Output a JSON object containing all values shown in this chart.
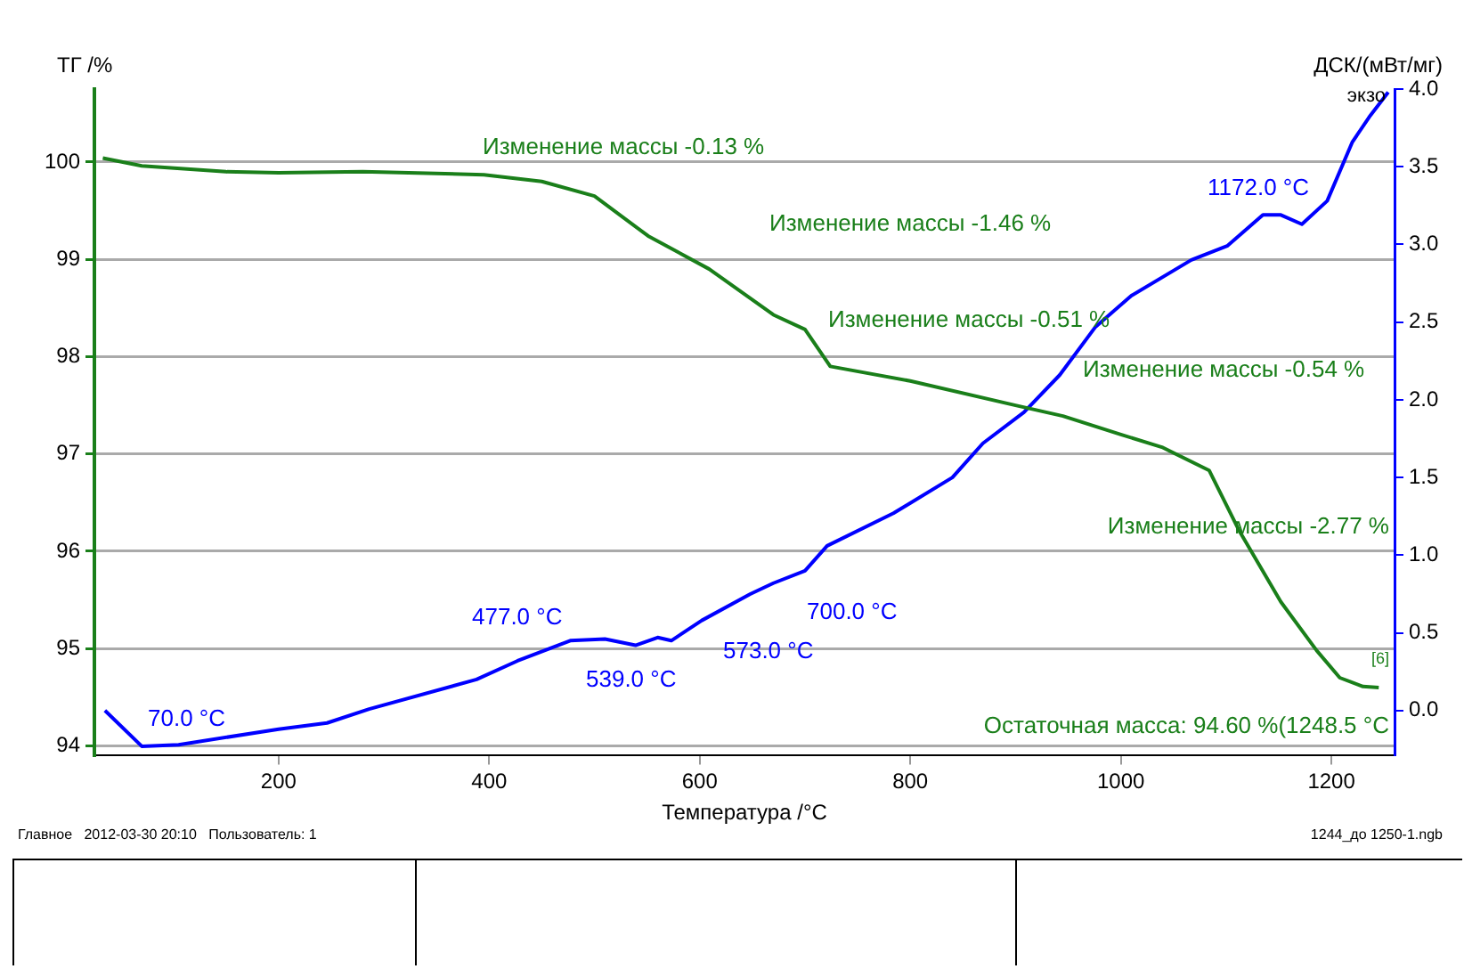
{
  "chart_data": {
    "type": "line",
    "xlabel": "Температура /°C",
    "ylabel": "ТГ /%",
    "y2label": "ДСК/(мВт/мг)",
    "xlim": [
      25,
      1260
    ],
    "xticks": [
      200,
      400,
      600,
      800,
      1000,
      1200
    ],
    "ylim": [
      93.9,
      100.75
    ],
    "yticks": [
      94,
      95,
      96,
      97,
      98,
      99,
      100
    ],
    "y2lim": [
      -0.29,
      4.0
    ],
    "y2ticks": [
      {
        "value": 0,
        "label": "0.0"
      },
      {
        "value": 0.5,
        "label": "0.5"
      },
      {
        "value": 1,
        "label": "1.0"
      },
      {
        "value": 1.5,
        "label": "1.5"
      },
      {
        "value": 2,
        "label": "2.0"
      },
      {
        "value": 2.5,
        "label": "2.5"
      },
      {
        "value": 3,
        "label": "3.0"
      },
      {
        "value": 3.5,
        "label": "3.5"
      },
      {
        "value": 4,
        "label": "4.0"
      }
    ],
    "grid": "y",
    "legend": false,
    "marker": "none",
    "line_style": "solid",
    "series": [
      {
        "color": "#1a7f1a",
        "x": [
          33,
          70,
          150,
          200,
          280,
          395,
          450,
          500,
          551,
          609,
          670,
          700,
          724,
          800,
          900,
          945,
          1000,
          1039,
          1084,
          1112,
          1152,
          1186,
          1208,
          1230,
          1245
        ],
        "values": [
          100.04,
          99.96,
          99.9,
          99.89,
          99.9,
          99.87,
          99.8,
          99.65,
          99.24,
          98.9,
          98.43,
          98.28,
          97.9,
          97.75,
          97.5,
          97.39,
          97.2,
          97.07,
          96.83,
          96.22,
          95.48,
          94.98,
          94.7,
          94.61,
          94.6
        ]
      },
      {
        "color": "#0000ff",
        "axis": "y2",
        "x": [
          35,
          70,
          105,
          200,
          246,
          286,
          388,
          427,
          477,
          510,
          539,
          560,
          573,
          602,
          648,
          670,
          700,
          721,
          784,
          840,
          869,
          908,
          942,
          976,
          1010,
          1067,
          1101,
          1135,
          1152,
          1172,
          1196,
          1220,
          1237,
          1254
        ],
        "values": [
          0.0,
          -0.23,
          -0.22,
          -0.12,
          -0.08,
          0.01,
          0.2,
          0.32,
          0.45,
          0.46,
          0.42,
          0.47,
          0.45,
          0.58,
          0.75,
          0.82,
          0.9,
          1.06,
          1.27,
          1.5,
          1.72,
          1.92,
          2.16,
          2.47,
          2.67,
          2.9,
          2.99,
          3.19,
          3.19,
          3.13,
          3.28,
          3.66,
          3.83,
          3.98
        ]
      }
    ],
    "annotations": [
      "Изменение массы -0.13 %",
      "Изменение массы -1.46 %",
      "Изменение массы -0.51 %",
      "Изменение массы -0.54 %",
      "Изменение массы -2.77 %",
      "Остаточная масса: 94.60 %(1248.5 °C",
      "70.0 °C",
      "477.0 °C",
      "539.0 °C",
      "573.0 °C",
      "700.0 °C",
      "1172.0 °C",
      "экзо",
      "[6]",
      "Главное   2012-03-30 20:10   Пользователь: 1",
      "1244_до 1250-1.ngb"
    ]
  }
}
